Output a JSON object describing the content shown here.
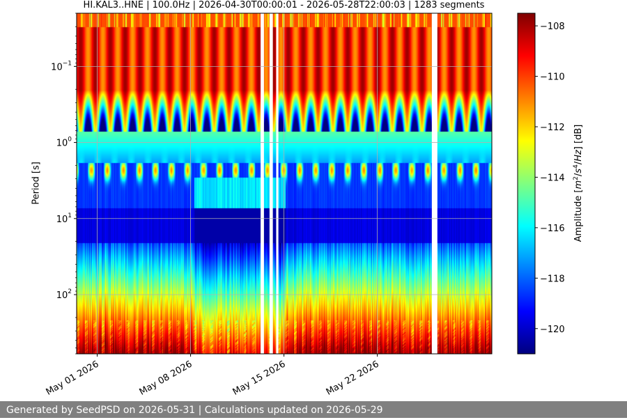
{
  "chart_data": {
    "type": "heatmap",
    "title": "HI.KAL3..HNE | 100.0Hz | 2026-04-30T00:00:01 - 2026-05-28T22:00:03 | 1283 segments",
    "ylabel": "Period [s]",
    "colorbar_label": "Amplitude [m²/s⁴/Hz] [dB]",
    "colormap": "jet",
    "x_range": [
      "2026-04-29T11:00:00",
      "2026-05-30T14:00:00"
    ],
    "x_ticks": [
      {
        "date": "2026-05-01",
        "label": "May 01 2026"
      },
      {
        "date": "2026-05-08",
        "label": "May 08 2026"
      },
      {
        "date": "2026-05-15",
        "label": "May 15 2026"
      },
      {
        "date": "2026-05-22",
        "label": "May 22 2026"
      }
    ],
    "y_scale": "log",
    "y_reversed": true,
    "y_range": [
      0.02,
      600
    ],
    "y_ticks": [
      {
        "value": 0.1,
        "base": "10",
        "exp": "−1"
      },
      {
        "value": 1,
        "base": "10",
        "exp": "0"
      },
      {
        "value": 10,
        "base": "10",
        "exp": "1"
      },
      {
        "value": 100,
        "base": "10",
        "exp": "2"
      }
    ],
    "colorbar_range": [
      -121,
      -107.5
    ],
    "colorbar_ticks": [
      -108,
      -110,
      -112,
      -114,
      -116,
      -118,
      -120
    ],
    "grid": true,
    "data_gaps": [
      [
        "2026-05-13T06:00:00",
        "2026-05-13T12:00:00"
      ],
      [
        "2026-05-13T22:00:00",
        "2026-05-14T04:00:00"
      ],
      [
        "2026-05-14T10:00:00",
        "2026-05-14T14:00:00"
      ],
      [
        "2026-05-26T02:00:00",
        "2026-05-26T12:00:00"
      ]
    ]
  },
  "footer": {
    "text": "Generated by SeedPSD on 2026-05-31 | Calculations updated on 2026-05-29"
  }
}
